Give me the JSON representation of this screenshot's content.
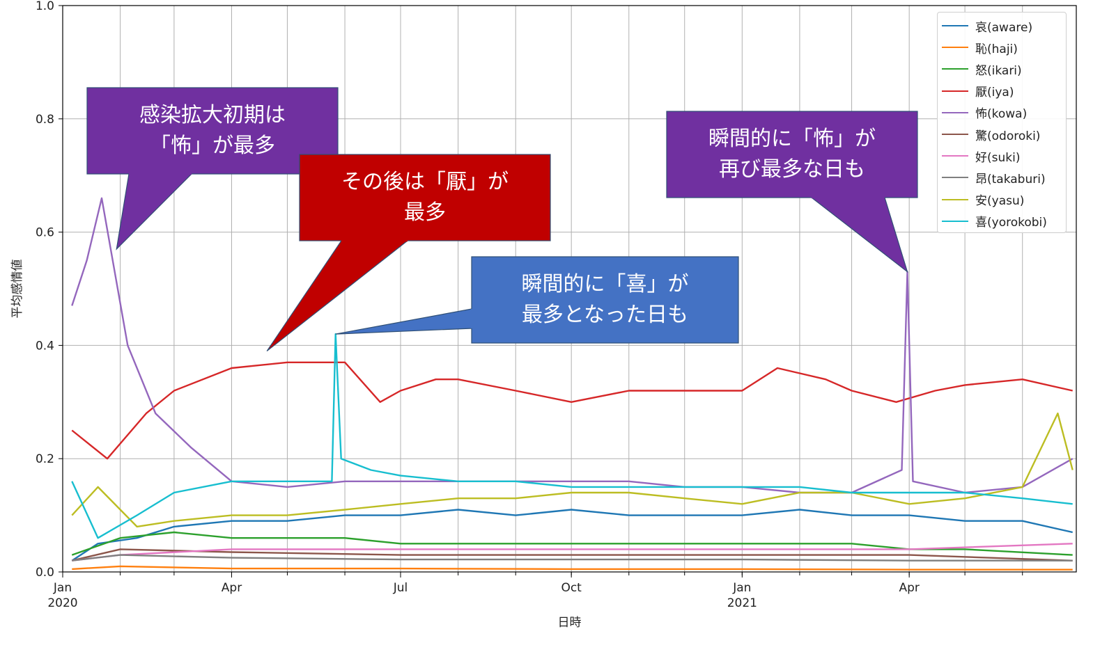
{
  "chart_data": {
    "type": "line",
    "title": "",
    "xlabel": "日時",
    "ylabel": "平均感情値",
    "xlim": [
      "2020-01-01",
      "2021-06-30"
    ],
    "ylim": [
      0,
      1.0
    ],
    "grid": true,
    "legend_position": "top-right",
    "yticks": [
      "0.0",
      "0.2",
      "0.4",
      "0.6",
      "0.8",
      "1.0"
    ],
    "xticks": [
      {
        "date": "2020-01-01",
        "label": "Jan",
        "sublabel": "2020"
      },
      {
        "date": "2020-04-01",
        "label": "Apr",
        "sublabel": ""
      },
      {
        "date": "2020-07-01",
        "label": "Jul",
        "sublabel": ""
      },
      {
        "date": "2020-10-01",
        "label": "Oct",
        "sublabel": ""
      },
      {
        "date": "2021-01-01",
        "label": "Jan",
        "sublabel": "2021"
      },
      {
        "date": "2021-04-01",
        "label": "Apr",
        "sublabel": ""
      }
    ],
    "series": [
      {
        "name": "哀(aware)",
        "color": "#1f77b4",
        "x": [
          "2020-01-06",
          "2020-01-20",
          "2020-02-10",
          "2020-03-01",
          "2020-04-01",
          "2020-05-01",
          "2020-06-01",
          "2020-07-01",
          "2020-08-01",
          "2020-09-01",
          "2020-10-01",
          "2020-11-01",
          "2020-12-01",
          "2021-01-01",
          "2021-02-01",
          "2021-03-01",
          "2021-04-01",
          "2021-05-01",
          "2021-06-01",
          "2021-06-28"
        ],
        "y": [
          0.02,
          0.05,
          0.06,
          0.08,
          0.09,
          0.09,
          0.1,
          0.1,
          0.11,
          0.1,
          0.11,
          0.1,
          0.1,
          0.1,
          0.11,
          0.1,
          0.1,
          0.09,
          0.09,
          0.07
        ]
      },
      {
        "name": "恥(haji)",
        "color": "#ff7f0e",
        "x": [
          "2020-01-06",
          "2020-02-01",
          "2020-04-01",
          "2020-07-01",
          "2020-10-01",
          "2021-01-01",
          "2021-04-01",
          "2021-06-28"
        ],
        "y": [
          0.005,
          0.01,
          0.006,
          0.006,
          0.005,
          0.005,
          0.004,
          0.004
        ]
      },
      {
        "name": "怒(ikari)",
        "color": "#2ca02c",
        "x": [
          "2020-01-06",
          "2020-02-01",
          "2020-03-01",
          "2020-04-01",
          "2020-05-01",
          "2020-06-01",
          "2020-07-01",
          "2020-08-01",
          "2020-09-01",
          "2020-10-01",
          "2020-11-01",
          "2020-12-01",
          "2021-01-01",
          "2021-02-01",
          "2021-03-01",
          "2021-04-01",
          "2021-05-01",
          "2021-06-28"
        ],
        "y": [
          0.03,
          0.06,
          0.07,
          0.06,
          0.06,
          0.06,
          0.05,
          0.05,
          0.05,
          0.05,
          0.05,
          0.05,
          0.05,
          0.05,
          0.05,
          0.04,
          0.04,
          0.03
        ]
      },
      {
        "name": "厭(iya)",
        "color": "#d62728",
        "x": [
          "2020-01-06",
          "2020-01-25",
          "2020-02-15",
          "2020-03-01",
          "2020-04-01",
          "2020-05-01",
          "2020-06-01",
          "2020-06-20",
          "2020-07-01",
          "2020-07-20",
          "2020-08-01",
          "2020-09-01",
          "2020-10-01",
          "2020-11-01",
          "2020-12-01",
          "2021-01-01",
          "2021-01-20",
          "2021-02-15",
          "2021-03-01",
          "2021-03-25",
          "2021-04-15",
          "2021-05-01",
          "2021-06-01",
          "2021-06-28"
        ],
        "y": [
          0.25,
          0.2,
          0.28,
          0.32,
          0.36,
          0.37,
          0.37,
          0.3,
          0.32,
          0.34,
          0.34,
          0.32,
          0.3,
          0.32,
          0.32,
          0.32,
          0.36,
          0.34,
          0.32,
          0.3,
          0.32,
          0.33,
          0.34,
          0.32
        ]
      },
      {
        "name": "怖(kowa)",
        "color": "#9467bd",
        "x": [
          "2020-01-06",
          "2020-01-14",
          "2020-01-22",
          "2020-02-05",
          "2020-02-20",
          "2020-03-10",
          "2020-04-01",
          "2020-05-01",
          "2020-06-01",
          "2020-07-01",
          "2020-08-01",
          "2020-09-01",
          "2020-10-01",
          "2020-11-01",
          "2020-12-01",
          "2021-01-01",
          "2021-02-01",
          "2021-03-01",
          "2021-03-28",
          "2021-03-31",
          "2021-04-03",
          "2021-05-01",
          "2021-06-01",
          "2021-06-28"
        ],
        "y": [
          0.47,
          0.55,
          0.66,
          0.4,
          0.28,
          0.22,
          0.16,
          0.15,
          0.16,
          0.16,
          0.16,
          0.16,
          0.16,
          0.16,
          0.15,
          0.15,
          0.14,
          0.14,
          0.18,
          0.53,
          0.16,
          0.14,
          0.15,
          0.2
        ]
      },
      {
        "name": "驚(odoroki)",
        "color": "#8c564b",
        "x": [
          "2020-01-06",
          "2020-02-01",
          "2020-04-01",
          "2020-07-01",
          "2020-10-01",
          "2021-01-01",
          "2021-04-01",
          "2021-06-28"
        ],
        "y": [
          0.02,
          0.04,
          0.035,
          0.03,
          0.03,
          0.03,
          0.03,
          0.02
        ]
      },
      {
        "name": "好(suki)",
        "color": "#e377c2",
        "x": [
          "2020-01-06",
          "2020-02-01",
          "2020-04-01",
          "2020-07-01",
          "2020-10-01",
          "2021-01-01",
          "2021-04-01",
          "2021-06-28"
        ],
        "y": [
          0.02,
          0.03,
          0.04,
          0.04,
          0.04,
          0.04,
          0.04,
          0.05
        ]
      },
      {
        "name": "昂(takaburi)",
        "color": "#7f7f7f",
        "x": [
          "2020-01-06",
          "2020-02-01",
          "2020-04-01",
          "2020-07-01",
          "2020-10-01",
          "2021-01-01",
          "2021-04-01",
          "2021-06-28"
        ],
        "y": [
          0.02,
          0.03,
          0.025,
          0.022,
          0.022,
          0.022,
          0.02,
          0.02
        ]
      },
      {
        "name": "安(yasu)",
        "color": "#bcbd22",
        "x": [
          "2020-01-06",
          "2020-01-20",
          "2020-02-10",
          "2020-03-01",
          "2020-04-01",
          "2020-05-01",
          "2020-06-01",
          "2020-07-01",
          "2020-08-01",
          "2020-09-01",
          "2020-10-01",
          "2020-11-01",
          "2020-12-01",
          "2021-01-01",
          "2021-02-01",
          "2021-03-01",
          "2021-04-01",
          "2021-05-01",
          "2021-06-01",
          "2021-06-20",
          "2021-06-28"
        ],
        "y": [
          0.1,
          0.15,
          0.08,
          0.09,
          0.1,
          0.1,
          0.11,
          0.12,
          0.13,
          0.13,
          0.14,
          0.14,
          0.13,
          0.12,
          0.14,
          0.14,
          0.12,
          0.13,
          0.15,
          0.28,
          0.18
        ]
      },
      {
        "name": "喜(yorokobi)",
        "color": "#17becf",
        "x": [
          "2020-01-06",
          "2020-01-20",
          "2020-02-10",
          "2020-03-01",
          "2020-04-01",
          "2020-05-01",
          "2020-05-25",
          "2020-05-27",
          "2020-05-30",
          "2020-06-15",
          "2020-07-01",
          "2020-08-01",
          "2020-09-01",
          "2020-10-01",
          "2020-11-01",
          "2020-12-01",
          "2021-01-01",
          "2021-02-01",
          "2021-03-01",
          "2021-04-01",
          "2021-05-01",
          "2021-06-01",
          "2021-06-28"
        ],
        "y": [
          0.16,
          0.06,
          0.1,
          0.14,
          0.16,
          0.16,
          0.16,
          0.42,
          0.2,
          0.18,
          0.17,
          0.16,
          0.16,
          0.15,
          0.15,
          0.15,
          0.15,
          0.15,
          0.14,
          0.14,
          0.14,
          0.13,
          0.12
        ]
      }
    ],
    "annotations": [
      {
        "text": [
          "感染拡大初期は",
          "「怖」が最多"
        ],
        "color": "#7030a0",
        "target": {
          "x": "2020-01-30",
          "y": 0.57
        }
      },
      {
        "text": [
          "その後は「厭」が",
          "最多"
        ],
        "color": "#c00000",
        "target": {
          "x": "2020-04-20",
          "y": 0.39
        }
      },
      {
        "text": [
          "瞬間的に「喜」が",
          "最多となった日も"
        ],
        "color": "#4472c4",
        "target": {
          "x": "2020-05-27",
          "y": 0.42
        }
      },
      {
        "text": [
          "瞬間的に「怖」が",
          "再び最多な日も"
        ],
        "color": "#7030a0",
        "target": {
          "x": "2021-03-31",
          "y": 0.53
        }
      }
    ]
  }
}
